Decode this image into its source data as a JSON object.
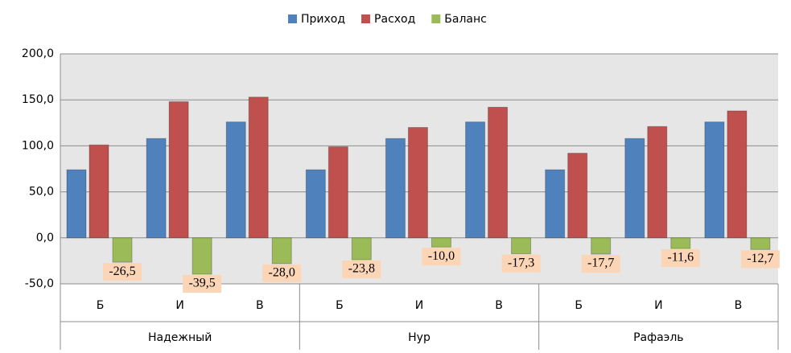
{
  "chart_data": {
    "type": "bar",
    "categories": [
      "Б",
      "И",
      "В",
      "Б",
      "И",
      "В",
      "Б",
      "И",
      "В"
    ],
    "groups": [
      "Надежный",
      "Нур",
      "Рафаэль"
    ],
    "series": [
      {
        "name": "Приход",
        "color": "#4f81bd",
        "values": [
          74,
          108,
          126,
          74,
          108,
          126,
          74,
          108,
          126
        ]
      },
      {
        "name": "Расход",
        "color": "#c0504d",
        "values": [
          101,
          148,
          153,
          99,
          120,
          142,
          92,
          121,
          138
        ]
      },
      {
        "name": "Баланс",
        "color": "#9bbb59",
        "values": [
          -26.5,
          -39.5,
          -28.0,
          -23.8,
          -10.0,
          -17.3,
          -17.7,
          -11.6,
          -12.7
        ],
        "value_labels": [
          "-26,5",
          "-39,5",
          "-28,0",
          "-23,8",
          "-10,0",
          "-17,3",
          "-17,7",
          "-11,6",
          "-12,7"
        ]
      }
    ],
    "ylim": [
      -50,
      200
    ],
    "yticks": [
      {
        "value": -50,
        "label": "-50,0"
      },
      {
        "value": 0,
        "label": "0,0"
      },
      {
        "value": 50,
        "label": "50,0"
      },
      {
        "value": 100,
        "label": "100,0"
      },
      {
        "value": 150,
        "label": "150,0"
      },
      {
        "value": 200,
        "label": "200,0"
      }
    ],
    "grid": true,
    "legend": "top"
  }
}
